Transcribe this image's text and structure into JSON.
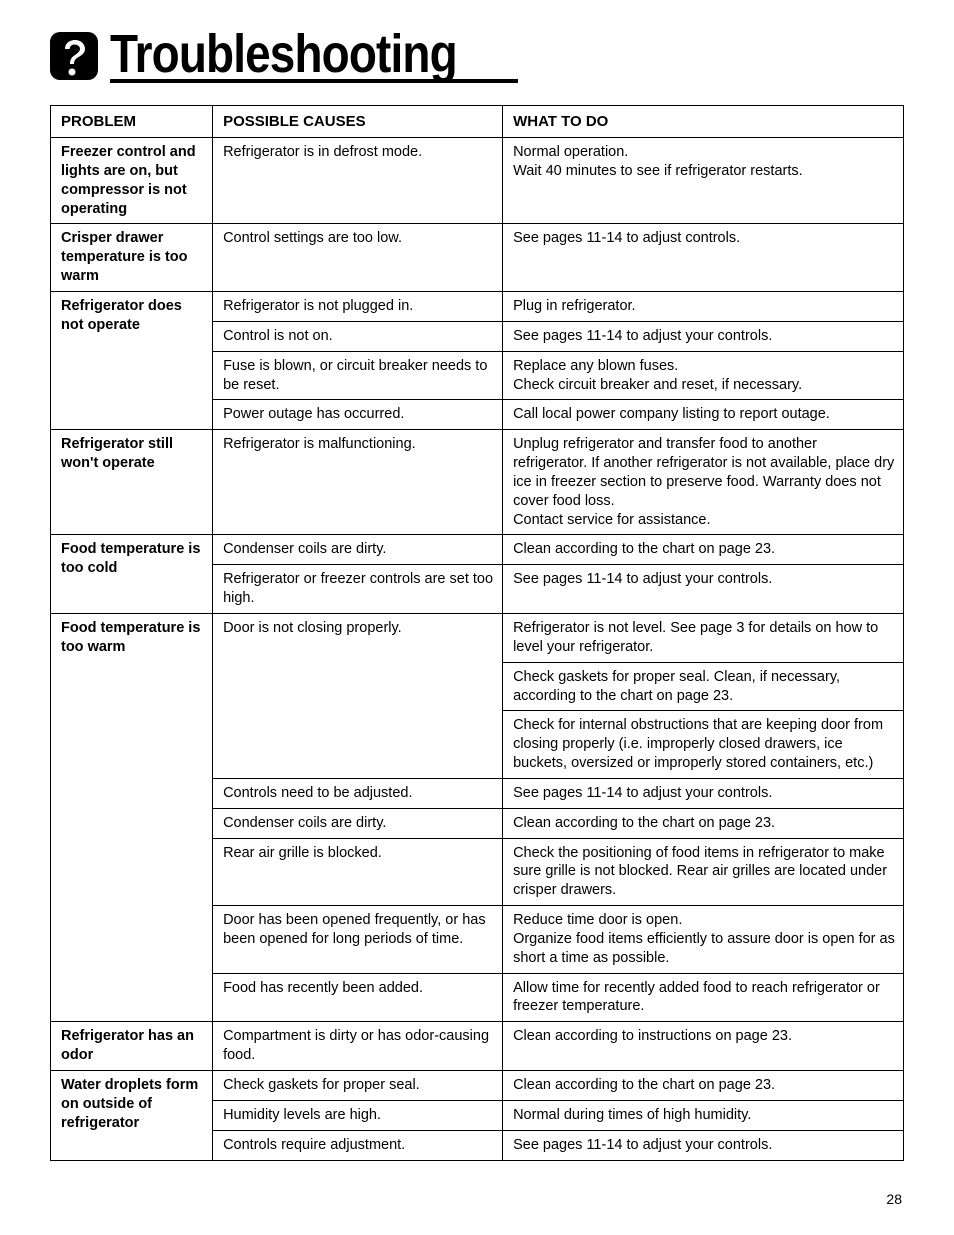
{
  "page": {
    "title": "Troubleshooting",
    "number": "28"
  },
  "headers": {
    "problem": "PROBLEM",
    "causes": "POSSIBLE CAUSES",
    "todo": "WHAT TO DO"
  },
  "rows": {
    "r1_problem": "Freezer control and lights are on, but compressor is not operating",
    "r1_cause": "Refrigerator is in defrost mode.",
    "r1_todo": "Normal operation.\nWait 40 minutes to see if refrigerator restarts.",
    "r2_problem": "Crisper drawer temperature is too warm",
    "r2_cause": "Control settings are too low.",
    "r2_todo": "See pages 11-14 to adjust controls.",
    "r3_problem": "Refrigerator does not operate",
    "r3a_cause": "Refrigerator is not plugged in.",
    "r3a_todo": "Plug in refrigerator.",
    "r3b_cause": "Control is not on.",
    "r3b_todo": "See pages 11-14 to adjust your controls.",
    "r3c_cause": "Fuse is blown, or circuit breaker needs to be reset.",
    "r3c_todo": "Replace any blown fuses.\nCheck circuit breaker and reset, if necessary.",
    "r3d_cause": "Power outage has occurred.",
    "r3d_todo": "Call local power company listing to report outage.",
    "r4_problem": "Refrigerator still won't operate",
    "r4_cause": "Refrigerator is malfunctioning.",
    "r4_todo": "Unplug refrigerator and transfer food to another refrigerator. If another refrigerator is not available, place dry ice in freezer section to preserve food. Warranty does not cover food loss.\nContact service for assistance.",
    "r5_problem": "Food temperature is too cold",
    "r5a_cause": "Condenser coils are dirty.",
    "r5a_todo": "Clean according to the chart on page 23.",
    "r5b_cause": "Refrigerator or freezer controls are set too high.",
    "r5b_todo": "See pages 11-14 to adjust your controls.",
    "r6_problem": "Food temperature is too warm",
    "r6a_cause": "Door is not closing properly.",
    "r6a_todo1": "Refrigerator is not level. See page 3 for details on how to level your refrigerator.",
    "r6a_todo2": "Check gaskets for proper seal. Clean, if necessary, according to the chart on page 23.",
    "r6a_todo3": "Check for internal obstructions that are keeping door from closing properly (i.e. improperly closed drawers, ice buckets, oversized or improperly stored containers, etc.)",
    "r6b_cause": "Controls need to be adjusted.",
    "r6b_todo": "See pages 11-14 to adjust your controls.",
    "r6c_cause": "Condenser coils are dirty.",
    "r6c_todo": "Clean according to the chart on page 23.",
    "r6d_cause": "Rear air grille is blocked.",
    "r6d_todo": "Check the positioning of food items in refrigerator to make sure grille is not blocked. Rear air grilles are located under crisper drawers.",
    "r6e_cause": "Door has been opened frequently, or has been opened for long periods of time.",
    "r6e_todo": "Reduce time door is open.\nOrganize food items efficiently to assure door is open for as short a time as possible.",
    "r6f_cause": "Food has recently been added.",
    "r6f_todo": "Allow time for recently added food to reach refrigerator or freezer temperature.",
    "r7_problem": "Refrigerator has an odor",
    "r7_cause": "Compartment is dirty or has odor-causing food.",
    "r7_todo": "Clean according to instructions on page 23.",
    "r8_problem": "Water droplets form on outside of refrigerator",
    "r8a_cause": "Check gaskets for proper seal.",
    "r8a_todo": "Clean according to the chart on page 23.",
    "r8b_cause": "Humidity levels are high.",
    "r8b_todo": "Normal during times of high humidity.",
    "r8c_cause": "Controls require adjustment.",
    "r8c_todo": "See pages 11-14 to adjust your controls."
  }
}
